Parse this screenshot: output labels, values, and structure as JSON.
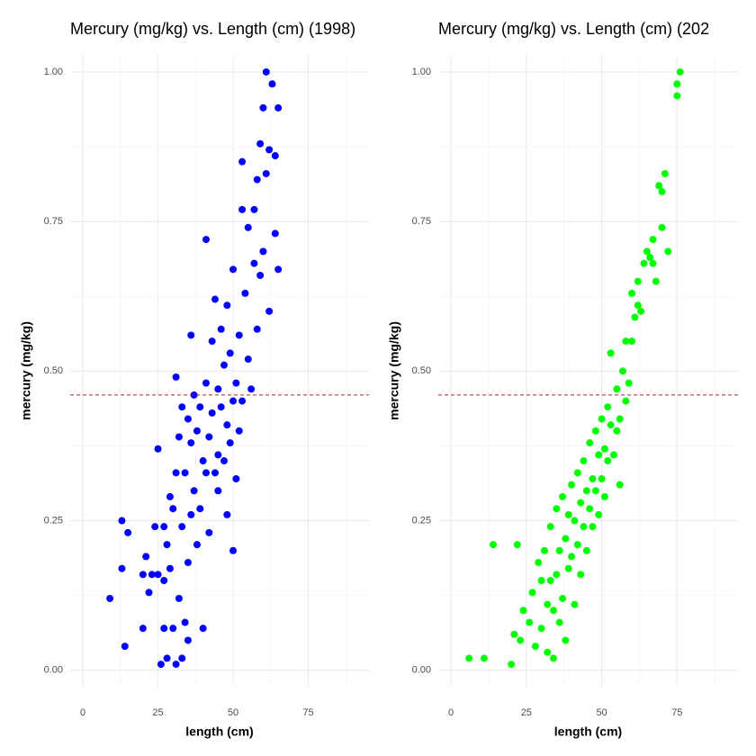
{
  "chart_data": [
    {
      "type": "scatter",
      "title": "Mercury (mg/kg) vs. Length (cm) (1998)",
      "x_label": "length (cm)",
      "y_label": "mercury (mg/kg)",
      "color": "#0000ff",
      "xlim": [
        -4.2,
        95.2
      ],
      "ylim": [
        -0.026,
        1.027
      ],
      "xticks": [
        0,
        25,
        50,
        75
      ],
      "yticks": [
        {
          "value": 0,
          "label": "0.00"
        },
        0.25,
        {
          "value": 0.5,
          "label": "0.50"
        },
        0.75,
        {
          "value": 1,
          "label": "1.00"
        }
      ],
      "grid": true,
      "reference_line": {
        "value": 0.46,
        "color": "#b22222",
        "style": "dashed"
      },
      "x": [
        9,
        13,
        13,
        14,
        15,
        20,
        20,
        21,
        22,
        23,
        24,
        25,
        25,
        26,
        27,
        27,
        27,
        28,
        28,
        29,
        29,
        30,
        30,
        31,
        31,
        31,
        32,
        32,
        33,
        33,
        33,
        34,
        34,
        35,
        35,
        35,
        36,
        36,
        36,
        37,
        37,
        38,
        38,
        39,
        39,
        40,
        40,
        41,
        41,
        41,
        42,
        42,
        43,
        43,
        44,
        44,
        45,
        45,
        45,
        46,
        46,
        47,
        47,
        48,
        48,
        48,
        49,
        49,
        50,
        50,
        50,
        51,
        51,
        52,
        52,
        53,
        53,
        53,
        54,
        55,
        55,
        56,
        57,
        57,
        58,
        58,
        59,
        59,
        60,
        60,
        61,
        61,
        62,
        62,
        63,
        64,
        64,
        65,
        65
      ],
      "y": [
        0.12,
        0.25,
        0.17,
        0.04,
        0.23,
        0.16,
        0.07,
        0.19,
        0.13,
        0.16,
        0.24,
        0.16,
        0.37,
        0.01,
        0.24,
        0.15,
        0.07,
        0.21,
        0.02,
        0.29,
        0.17,
        0.27,
        0.07,
        0.33,
        0.49,
        0.01,
        0.39,
        0.12,
        0.44,
        0.24,
        0.02,
        0.33,
        0.08,
        0.42,
        0.18,
        0.05,
        0.56,
        0.38,
        0.26,
        0.46,
        0.3,
        0.4,
        0.21,
        0.44,
        0.27,
        0.35,
        0.07,
        0.72,
        0.48,
        0.33,
        0.39,
        0.23,
        0.55,
        0.43,
        0.33,
        0.62,
        0.47,
        0.36,
        0.3,
        0.57,
        0.44,
        0.35,
        0.51,
        0.61,
        0.41,
        0.26,
        0.38,
        0.53,
        0.45,
        0.2,
        0.67,
        0.48,
        0.32,
        0.56,
        0.4,
        0.85,
        0.45,
        0.77,
        0.63,
        0.74,
        0.52,
        0.47,
        0.68,
        0.77,
        0.57,
        0.82,
        0.88,
        0.66,
        0.7,
        0.94,
        0.83,
        1.0,
        0.87,
        0.6,
        0.98,
        0.86,
        0.73,
        0.94,
        0.67
      ]
    },
    {
      "type": "scatter",
      "title": "Mercury (mg/kg) vs. Length (cm) (202",
      "x_label": "length (cm)",
      "y_label": "mercury (mg/kg)",
      "color": "#00ff00",
      "xlim": [
        -4.2,
        95.2
      ],
      "ylim": [
        -0.026,
        1.027
      ],
      "xticks": [
        0,
        25,
        50,
        75
      ],
      "yticks": [
        {
          "value": 0,
          "label": "0.00"
        },
        0.25,
        {
          "value": 0.5,
          "label": "0.50"
        },
        0.75,
        {
          "value": 1,
          "label": "1.00"
        }
      ],
      "grid": true,
      "reference_line": {
        "value": 0.46,
        "color": "#b22222",
        "style": "dashed"
      },
      "x": [
        6,
        11,
        14,
        20,
        22,
        21,
        23,
        24,
        26,
        27,
        28,
        29,
        30,
        30,
        31,
        32,
        32,
        33,
        33,
        34,
        34,
        35,
        35,
        36,
        36,
        37,
        37,
        38,
        38,
        39,
        39,
        40,
        40,
        41,
        41,
        42,
        42,
        43,
        43,
        44,
        44,
        45,
        45,
        46,
        46,
        47,
        47,
        48,
        48,
        49,
        49,
        50,
        50,
        51,
        51,
        52,
        52,
        53,
        53,
        54,
        55,
        55,
        56,
        56,
        57,
        58,
        58,
        59,
        60,
        60,
        61,
        62,
        62,
        63,
        64,
        65,
        66,
        67,
        67,
        68,
        69,
        70,
        70,
        71,
        72,
        75,
        75,
        76
      ],
      "y": [
        0.02,
        0.02,
        0.21,
        0.01,
        0.21,
        0.06,
        0.05,
        0.1,
        0.08,
        0.13,
        0.04,
        0.18,
        0.07,
        0.15,
        0.2,
        0.11,
        0.03,
        0.24,
        0.15,
        0.1,
        0.02,
        0.27,
        0.16,
        0.2,
        0.08,
        0.29,
        0.12,
        0.22,
        0.05,
        0.26,
        0.17,
        0.31,
        0.19,
        0.25,
        0.11,
        0.33,
        0.21,
        0.28,
        0.16,
        0.35,
        0.24,
        0.3,
        0.2,
        0.27,
        0.38,
        0.32,
        0.24,
        0.4,
        0.3,
        0.36,
        0.26,
        0.42,
        0.32,
        0.37,
        0.29,
        0.44,
        0.35,
        0.41,
        0.53,
        0.36,
        0.47,
        0.4,
        0.42,
        0.31,
        0.5,
        0.45,
        0.55,
        0.48,
        0.63,
        0.55,
        0.59,
        0.61,
        0.65,
        0.6,
        0.68,
        0.7,
        0.69,
        0.72,
        0.68,
        0.65,
        0.81,
        0.74,
        0.8,
        0.83,
        0.7,
        0.96,
        0.98,
        1.0
      ]
    }
  ]
}
